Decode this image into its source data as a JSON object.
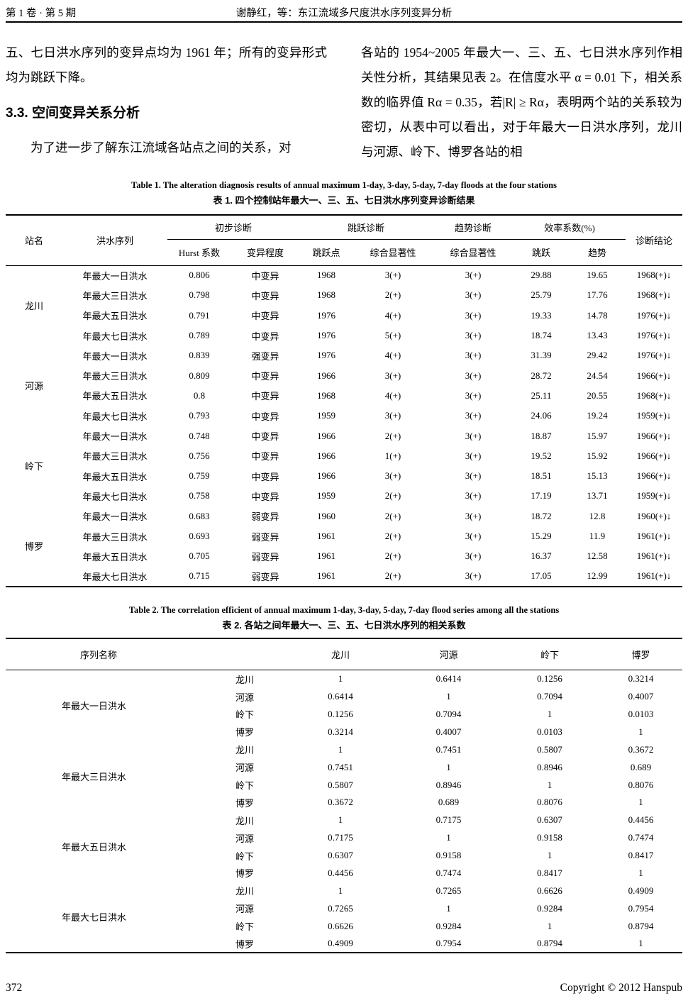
{
  "header": {
    "issue": "第 1 卷 · 第 5 期",
    "running_title": "谢静红，等：东江流域多尺度洪水序列变异分析"
  },
  "body_text": {
    "left_para1": "五、七日洪水序列的变异点均为 1961 年；所有的变异形式均为跳跃下降。",
    "section_heading": "3.3. 空间变异关系分析",
    "left_para2": "为了进一步了解东江流域各站点之间的关系，对",
    "right_para": "各站的 1954~2005 年最大一、三、五、七日洪水序列作相关性分析，其结果见表 2。在信度水平 α = 0.01 下，相关系数的临界值 Rα = 0.35，若|R| ≥ Rα，表明两个站的关系较为密切，从表中可以看出，对于年最大一日洪水序列，龙川与河源、岭下、博罗各站的相"
  },
  "table1": {
    "caption_en": "Table 1. The alteration diagnosis results of annual maximum 1-day, 3-day, 5-day, 7-day floods at the four stations",
    "caption_zh": "表 1. 四个控制站年最大一、三、五、七日洪水序列变异诊断结果",
    "headers": {
      "station": "站名",
      "series": "洪水序列",
      "groups": [
        "初步诊断",
        "跳跃诊断",
        "趋势诊断",
        "效率系数(%)"
      ],
      "sub": [
        "Hurst 系数",
        "变异程度",
        "跳跃点",
        "综合显著性",
        "综合显著性",
        "跳跃",
        "趋势"
      ],
      "conclusion": "诊断结论"
    },
    "station_groups": [
      {
        "name": "龙川",
        "rows": [
          [
            "年最大一日洪水",
            "0.806",
            "中变异",
            "1968",
            "3(+)",
            "3(+)",
            "29.88",
            "19.65",
            "1968(+)↓"
          ],
          [
            "年最大三日洪水",
            "0.798",
            "中变异",
            "1968",
            "2(+)",
            "3(+)",
            "25.79",
            "17.76",
            "1968(+)↓"
          ],
          [
            "年最大五日洪水",
            "0.791",
            "中变异",
            "1976",
            "4(+)",
            "3(+)",
            "19.33",
            "14.78",
            "1976(+)↓"
          ],
          [
            "年最大七日洪水",
            "0.789",
            "中变异",
            "1976",
            "5(+)",
            "3(+)",
            "18.74",
            "13.43",
            "1976(+)↓"
          ]
        ]
      },
      {
        "name": "河源",
        "rows": [
          [
            "年最大一日洪水",
            "0.839",
            "强变异",
            "1976",
            "4(+)",
            "3(+)",
            "31.39",
            "29.42",
            "1976(+)↓"
          ],
          [
            "年最大三日洪水",
            "0.809",
            "中变异",
            "1966",
            "3(+)",
            "3(+)",
            "28.72",
            "24.54",
            "1966(+)↓"
          ],
          [
            "年最大五日洪水",
            "0.8",
            "中变异",
            "1968",
            "4(+)",
            "3(+)",
            "25.11",
            "20.55",
            "1968(+)↓"
          ],
          [
            "年最大七日洪水",
            "0.793",
            "中变异",
            "1959",
            "3(+)",
            "3(+)",
            "24.06",
            "19.24",
            "1959(+)↓"
          ]
        ]
      },
      {
        "name": "岭下",
        "rows": [
          [
            "年最大一日洪水",
            "0.748",
            "中变异",
            "1966",
            "2(+)",
            "3(+)",
            "18.87",
            "15.97",
            "1966(+)↓"
          ],
          [
            "年最大三日洪水",
            "0.756",
            "中变异",
            "1966",
            "1(+)",
            "3(+)",
            "19.52",
            "15.92",
            "1966(+)↓"
          ],
          [
            "年最大五日洪水",
            "0.759",
            "中变异",
            "1966",
            "3(+)",
            "3(+)",
            "18.51",
            "15.13",
            "1966(+)↓"
          ],
          [
            "年最大七日洪水",
            "0.758",
            "中变异",
            "1959",
            "2(+)",
            "3(+)",
            "17.19",
            "13.71",
            "1959(+)↓"
          ]
        ]
      },
      {
        "name": "博罗",
        "rows": [
          [
            "年最大一日洪水",
            "0.683",
            "弱变异",
            "1960",
            "2(+)",
            "3(+)",
            "18.72",
            "12.8",
            "1960(+)↓"
          ],
          [
            "年最大三日洪水",
            "0.693",
            "弱变异",
            "1961",
            "2(+)",
            "3(+)",
            "15.29",
            "11.9",
            "1961(+)↓"
          ],
          [
            "年最大五日洪水",
            "0.705",
            "弱变异",
            "1961",
            "2(+)",
            "3(+)",
            "16.37",
            "12.58",
            "1961(+)↓"
          ],
          [
            "年最大七日洪水",
            "0.715",
            "弱变异",
            "1961",
            "2(+)",
            "3(+)",
            "17.05",
            "12.99",
            "1961(+)↓"
          ]
        ]
      }
    ]
  },
  "table2": {
    "caption_en": "Table 2. The correlation efficient of annual maximum 1-day, 3-day, 5-day, 7-day flood series among all the stations",
    "caption_zh": "表 2. 各站之间年最大一、三、五、七日洪水序列的相关系数",
    "headers": {
      "series_name": "序列名称",
      "stations": [
        "龙川",
        "河源",
        "岭下",
        "博罗"
      ]
    },
    "groups": [
      {
        "label": "年最大一日洪水",
        "rows": [
          {
            "station": "龙川",
            "values": [
              "1",
              "0.6414",
              "0.1256",
              "0.3214"
            ]
          },
          {
            "station": "河源",
            "values": [
              "0.6414",
              "1",
              "0.7094",
              "0.4007"
            ]
          },
          {
            "station": "岭下",
            "values": [
              "0.1256",
              "0.7094",
              "1",
              "0.0103"
            ]
          },
          {
            "station": "博罗",
            "values": [
              "0.3214",
              "0.4007",
              "0.0103",
              "1"
            ]
          }
        ]
      },
      {
        "label": "年最大三日洪水",
        "rows": [
          {
            "station": "龙川",
            "values": [
              "1",
              "0.7451",
              "0.5807",
              "0.3672"
            ]
          },
          {
            "station": "河源",
            "values": [
              "0.7451",
              "1",
              "0.8946",
              "0.689"
            ]
          },
          {
            "station": "岭下",
            "values": [
              "0.5807",
              "0.8946",
              "1",
              "0.8076"
            ]
          },
          {
            "station": "博罗",
            "values": [
              "0.3672",
              "0.689",
              "0.8076",
              "1"
            ]
          }
        ]
      },
      {
        "label": "年最大五日洪水",
        "rows": [
          {
            "station": "龙川",
            "values": [
              "1",
              "0.7175",
              "0.6307",
              "0.4456"
            ]
          },
          {
            "station": "河源",
            "values": [
              "0.7175",
              "1",
              "0.9158",
              "0.7474"
            ]
          },
          {
            "station": "岭下",
            "values": [
              "0.6307",
              "0.9158",
              "1",
              "0.8417"
            ]
          },
          {
            "station": "博罗",
            "values": [
              "0.4456",
              "0.7474",
              "0.8417",
              "1"
            ]
          }
        ]
      },
      {
        "label": "年最大七日洪水",
        "rows": [
          {
            "station": "龙川",
            "values": [
              "1",
              "0.7265",
              "0.6626",
              "0.4909"
            ]
          },
          {
            "station": "河源",
            "values": [
              "0.7265",
              "1",
              "0.9284",
              "0.7954"
            ]
          },
          {
            "station": "岭下",
            "values": [
              "0.6626",
              "0.9284",
              "1",
              "0.8794"
            ]
          },
          {
            "station": "博罗",
            "values": [
              "0.4909",
              "0.7954",
              "0.8794",
              "1"
            ]
          }
        ]
      }
    ]
  },
  "footer": {
    "page_number": "372",
    "copyright": "Copyright © 2012 Hanspub"
  }
}
